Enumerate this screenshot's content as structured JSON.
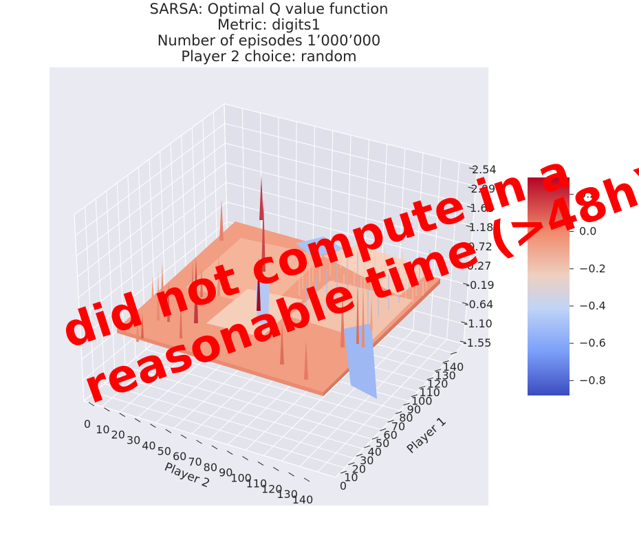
{
  "title": {
    "line1": "SARSA: Optimal Q value function",
    "line2": "Metric: digits1",
    "line3": "Number of episodes 1’000’000",
    "line4": "Player 2 choice: random"
  },
  "overlay": {
    "line1": "did not compute in a",
    "line2": "reasonable time (>48h)"
  },
  "chart_data": {
    "type": "surface3d",
    "x_axis": {
      "label": "Player 2",
      "ticks": [
        "0",
        "10",
        "20",
        "30",
        "40",
        "50",
        "60",
        "70",
        "80",
        "90",
        "100",
        "110",
        "120",
        "130",
        "140"
      ]
    },
    "y_axis": {
      "label": "Player 1",
      "ticks": [
        "0",
        "10",
        "20",
        "30",
        "40",
        "50",
        "60",
        "70",
        "80",
        "90",
        "100",
        "110",
        "120",
        "130",
        "140"
      ]
    },
    "z_axis": {
      "ticks": [
        "-1.55",
        "-1.10",
        "-0.64",
        "-0.19",
        "0.27",
        "0.72",
        "1.18",
        "1.63",
        "2.09",
        "2.54"
      ],
      "range": [
        -1.55,
        2.54
      ]
    },
    "colorbar": {
      "colormap": "coolwarm",
      "ticks": [
        "0.2",
        "0.0",
        "−0.2",
        "−0.4",
        "−0.6",
        "−0.8"
      ],
      "range": [
        -0.88,
        0.29
      ]
    },
    "pane_color": "#eaeaf2",
    "surface_base_color": "#f19e83"
  }
}
